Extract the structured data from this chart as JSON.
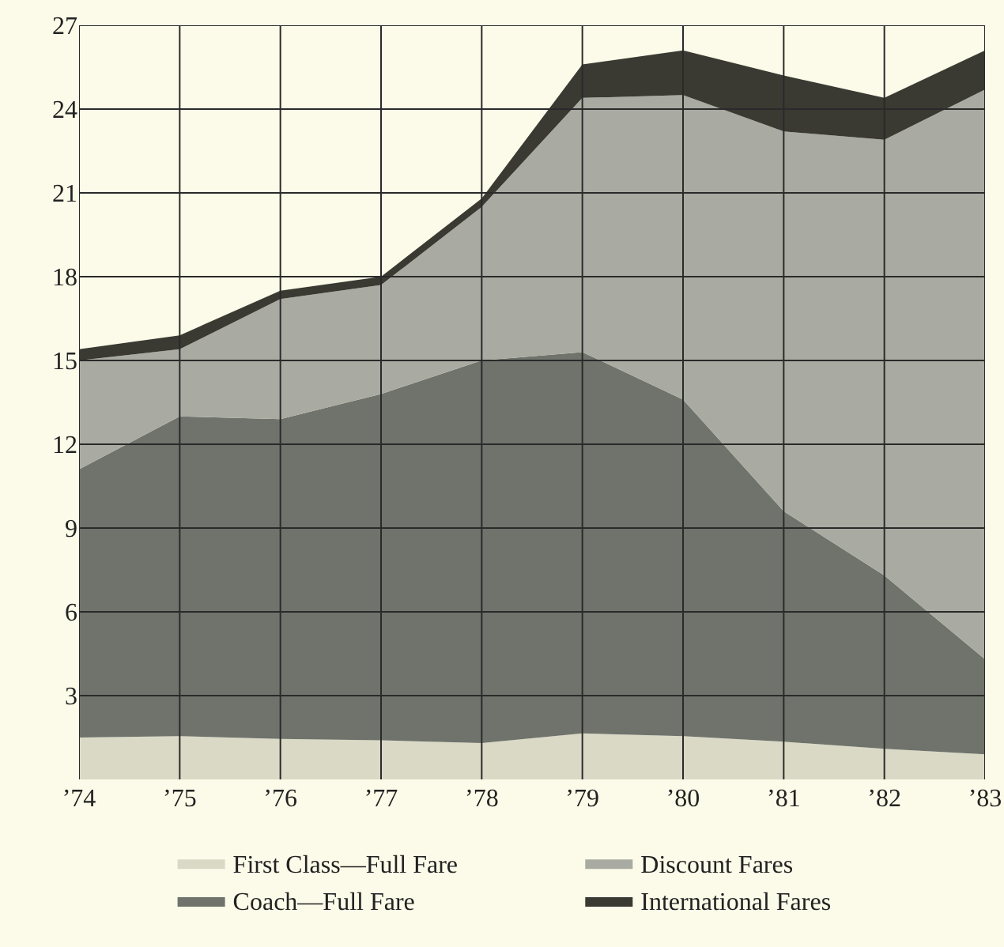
{
  "chart_data": {
    "type": "area",
    "stacked": true,
    "categories": [
      "’74",
      "’75",
      "’76",
      "’77",
      "’78",
      "’79",
      "’80",
      "’81",
      "’82",
      "’83"
    ],
    "series": [
      {
        "name": "First Class—Full Fare",
        "color": "#d9d9c6",
        "values": [
          1.5,
          1.55,
          1.45,
          1.4,
          1.3,
          1.65,
          1.55,
          1.35,
          1.1,
          0.9
        ]
      },
      {
        "name": "Coach—Full Fare",
        "color": "#6f736c",
        "values": [
          9.6,
          11.45,
          11.45,
          12.4,
          13.7,
          13.65,
          12.05,
          8.25,
          6.2,
          3.4
        ]
      },
      {
        "name": "Discount Fares",
        "color": "#a9aba2",
        "values": [
          3.9,
          2.4,
          4.3,
          3.9,
          5.5,
          9.1,
          10.9,
          13.6,
          15.6,
          20.4
        ]
      },
      {
        "name": "International Fares",
        "color": "#3a3a33",
        "values": [
          0.4,
          0.5,
          0.3,
          0.3,
          0.3,
          1.2,
          1.6,
          2.0,
          1.5,
          1.4
        ]
      }
    ],
    "ylim": [
      0,
      27
    ],
    "yticks": [
      3,
      6,
      9,
      12,
      15,
      18,
      21,
      24,
      27
    ],
    "grid": true,
    "legend": "bottom"
  }
}
